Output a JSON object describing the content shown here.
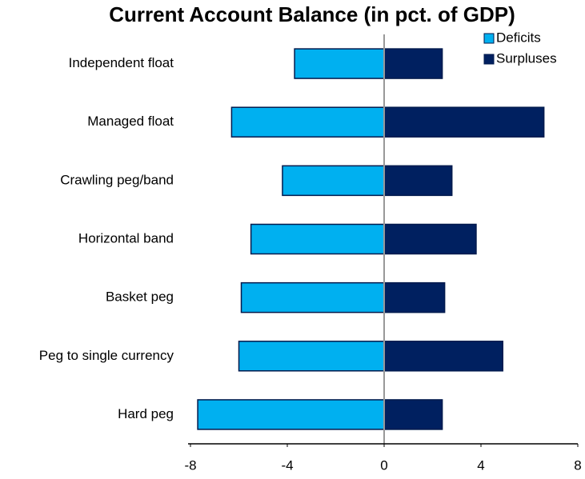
{
  "chart_data": {
    "type": "diverging-bar",
    "title": "Current Account Balance (in pct. of GDP)",
    "categories": [
      "Independent float",
      "Managed float",
      "Crawling peg/band",
      "Horizontal band",
      "Basket peg",
      "Peg to single currency",
      "Hard peg"
    ],
    "series": [
      {
        "name": "Deficits",
        "color": "#00b0f0",
        "values": [
          -3.7,
          -6.3,
          -4.2,
          -5.5,
          -5.9,
          -6.0,
          -7.7
        ]
      },
      {
        "name": "Surpluses",
        "color": "#002060",
        "values": [
          2.4,
          6.6,
          2.8,
          3.8,
          2.5,
          4.9,
          2.4
        ]
      }
    ],
    "xlim": [
      -8,
      8
    ],
    "xticks": [
      -8,
      -4,
      0,
      4,
      8
    ],
    "legend": "top-right"
  }
}
